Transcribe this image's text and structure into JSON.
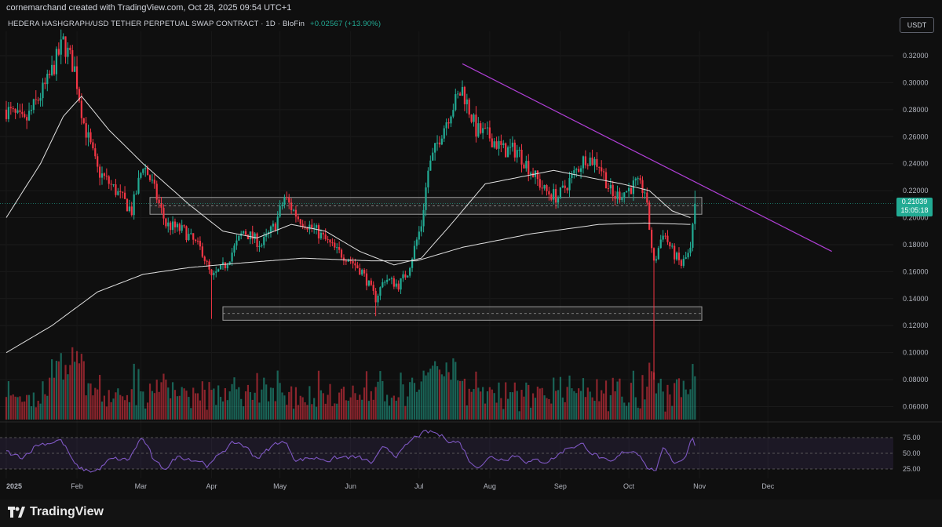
{
  "header": {
    "created_by": "cornemarchand created with TradingView.com, Oct 28, 2025 09:54 UTC+1",
    "symbol": "HEDERA HASHGRAPH/USD TETHER PERPETUAL SWAP CONTRACT · 1D · BloFin",
    "change": "+0.02567 (+13.90%)",
    "unit": "USDT"
  },
  "last_price": {
    "value": "0.21039",
    "countdown": "15:05:18"
  },
  "logo_text": "TradingView",
  "colors": {
    "up": "#22ab94",
    "down": "#f23645",
    "trendline": "#b03fd6",
    "rsi": "#7e57c2",
    "ma": "#e0e0e0",
    "background": "#0f0f0f"
  },
  "chart_data": {
    "type": "candlestick",
    "x_ticks": [
      "2025",
      "Feb",
      "Mar",
      "Apr",
      "May",
      "Jun",
      "Jul",
      "Aug",
      "Sep",
      "Oct",
      "Nov",
      "Dec"
    ],
    "x_tick_days": [
      0,
      31,
      59,
      90,
      120,
      151,
      181,
      212,
      243,
      273,
      304,
      334
    ],
    "y_ticks": [
      "0.32000",
      "0.30000",
      "0.28000",
      "0.26000",
      "0.24000",
      "0.22000",
      "0.20000",
      "0.18000",
      "0.16000",
      "0.14000",
      "0.12000",
      "0.10000",
      "0.08000",
      "0.06000"
    ],
    "ylim": [
      0.05,
      0.33
    ],
    "price_path": [
      [
        0,
        0.28
      ],
      [
        8,
        0.27
      ],
      [
        18,
        0.3
      ],
      [
        25,
        0.33
      ],
      [
        30,
        0.31
      ],
      [
        34,
        0.27
      ],
      [
        40,
        0.235
      ],
      [
        48,
        0.22
      ],
      [
        55,
        0.205
      ],
      [
        60,
        0.24
      ],
      [
        64,
        0.225
      ],
      [
        70,
        0.195
      ],
      [
        78,
        0.19
      ],
      [
        86,
        0.175
      ],
      [
        90,
        0.155
      ],
      [
        96,
        0.165
      ],
      [
        104,
        0.19
      ],
      [
        112,
        0.18
      ],
      [
        118,
        0.195
      ],
      [
        122,
        0.215
      ],
      [
        128,
        0.2
      ],
      [
        136,
        0.19
      ],
      [
        145,
        0.175
      ],
      [
        150,
        0.17
      ],
      [
        156,
        0.16
      ],
      [
        162,
        0.14
      ],
      [
        166,
        0.155
      ],
      [
        172,
        0.15
      ],
      [
        176,
        0.16
      ],
      [
        182,
        0.195
      ],
      [
        185,
        0.235
      ],
      [
        190,
        0.26
      ],
      [
        195,
        0.28
      ],
      [
        200,
        0.295
      ],
      [
        206,
        0.265
      ],
      [
        212,
        0.26
      ],
      [
        218,
        0.25
      ],
      [
        224,
        0.25
      ],
      [
        230,
        0.235
      ],
      [
        236,
        0.22
      ],
      [
        242,
        0.215
      ],
      [
        248,
        0.23
      ],
      [
        254,
        0.245
      ],
      [
        260,
        0.24
      ],
      [
        266,
        0.215
      ],
      [
        272,
        0.22
      ],
      [
        276,
        0.225
      ],
      [
        280,
        0.22
      ],
      [
        284,
        0.165
      ],
      [
        288,
        0.19
      ],
      [
        292,
        0.175
      ],
      [
        296,
        0.165
      ],
      [
        300,
        0.175
      ],
      [
        302,
        0.21
      ]
    ],
    "ma_short": [
      [
        0,
        0.2
      ],
      [
        15,
        0.24
      ],
      [
        25,
        0.275
      ],
      [
        33,
        0.29
      ],
      [
        45,
        0.265
      ],
      [
        60,
        0.24
      ],
      [
        80,
        0.21
      ],
      [
        95,
        0.19
      ],
      [
        110,
        0.185
      ],
      [
        125,
        0.195
      ],
      [
        140,
        0.19
      ],
      [
        155,
        0.175
      ],
      [
        170,
        0.165
      ],
      [
        182,
        0.17
      ],
      [
        195,
        0.195
      ],
      [
        210,
        0.225
      ],
      [
        225,
        0.23
      ],
      [
        240,
        0.235
      ],
      [
        255,
        0.23
      ],
      [
        270,
        0.225
      ],
      [
        282,
        0.22
      ],
      [
        292,
        0.205
      ],
      [
        300,
        0.2
      ]
    ],
    "ma_long": [
      [
        0,
        0.1
      ],
      [
        20,
        0.12
      ],
      [
        40,
        0.145
      ],
      [
        60,
        0.158
      ],
      [
        80,
        0.163
      ],
      [
        100,
        0.166
      ],
      [
        130,
        0.17
      ],
      [
        160,
        0.168
      ],
      [
        180,
        0.168
      ],
      [
        200,
        0.178
      ],
      [
        230,
        0.188
      ],
      [
        260,
        0.195
      ],
      [
        280,
        0.196
      ],
      [
        300,
        0.195
      ]
    ],
    "resistance_zone": {
      "x": [
        63,
        305
      ],
      "low": 0.2025,
      "high": 0.215
    },
    "support_zone": {
      "x": [
        95,
        305
      ],
      "low": 0.124,
      "high": 0.134
    },
    "trendline": [
      [
        200,
        0.314
      ],
      [
        362,
        0.175
      ]
    ],
    "rsi": {
      "levels": [
        "75.00",
        "50.00",
        "25.00"
      ],
      "last": 62
    }
  }
}
